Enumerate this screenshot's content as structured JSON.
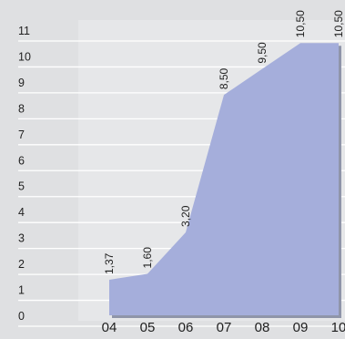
{
  "chart_data": {
    "type": "area",
    "categories": [
      "04",
      "05",
      "06",
      "07",
      "08",
      "09",
      "10"
    ],
    "x": [
      4,
      5,
      6,
      7,
      8,
      9,
      10
    ],
    "values": [
      1.37,
      1.6,
      3.2,
      8.5,
      9.5,
      10.5,
      10.5
    ],
    "data_labels": [
      "1,37",
      "1,60",
      "3,20",
      "8,50",
      "9,50",
      "10,50",
      "10,50"
    ],
    "y_ticks": [
      "0",
      "1",
      "2",
      "3",
      "4",
      "5",
      "6",
      "7",
      "8",
      "9",
      "10",
      "11"
    ],
    "ylim": [
      0,
      11
    ],
    "grid": true,
    "title": "",
    "xlabel": "",
    "ylabel": "",
    "colors": {
      "background": "#dfe0e2",
      "panel": "#e6e7e9",
      "area_fill": "#a5aedb",
      "shadow": "#8f95a9",
      "grid": "#ffffff",
      "text": "#1f1f1f"
    }
  }
}
